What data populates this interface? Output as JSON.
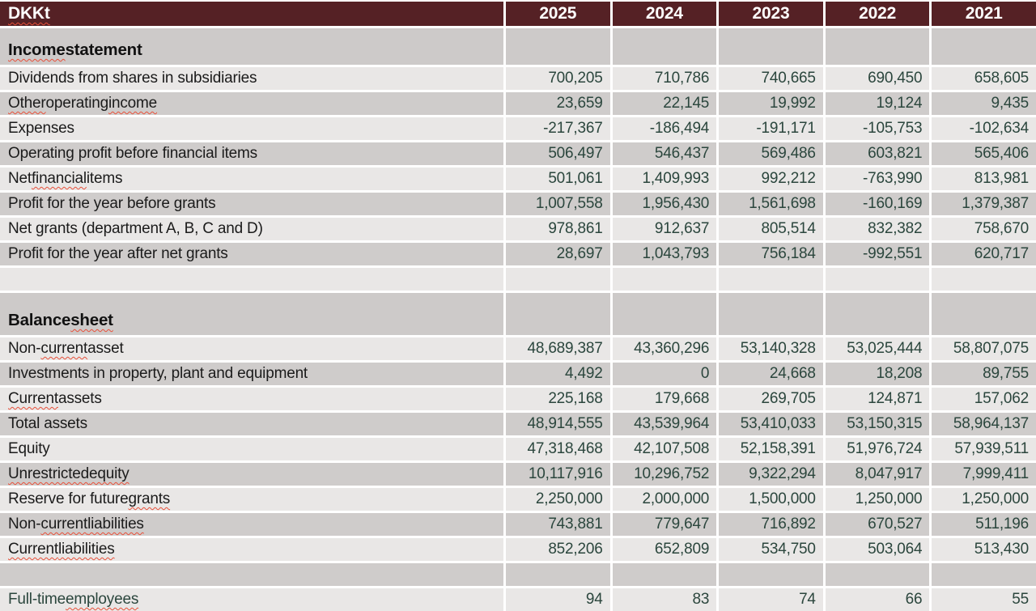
{
  "table": {
    "unit_label": "DKKt",
    "unit_label_misspelled": true,
    "years": [
      "2025",
      "2024",
      "2023",
      "2022",
      "2021"
    ],
    "colors": {
      "header_bg": "#552125",
      "header_text": "#ffffff",
      "row_light": "#e9e7e6",
      "row_dark": "#cfcccb",
      "section_bg": "#cdcac9",
      "label_text": "#1b1b1b",
      "value_text": "#2b463d",
      "squiggle": "#e8503a"
    },
    "rows": [
      {
        "type": "section",
        "label": "Income statement",
        "misspelled": [
          "Income"
        ]
      },
      {
        "type": "data",
        "shade": "light",
        "label": "Dividends from shares in subsidiaries",
        "misspelled": [],
        "values": [
          "700,205",
          "710,786",
          "740,665",
          "690,450",
          "658,605"
        ]
      },
      {
        "type": "data",
        "shade": "dark",
        "label": "Other operating income",
        "misspelled": [
          "Other",
          "income"
        ],
        "values": [
          "23,659",
          "22,145",
          "19,992",
          "19,124",
          "9,435"
        ]
      },
      {
        "type": "data",
        "shade": "light",
        "label": "Expenses",
        "misspelled": [],
        "values": [
          "-217,367",
          "-186,494",
          "-191,171",
          "-105,753",
          "-102,634"
        ]
      },
      {
        "type": "data",
        "shade": "dark",
        "label": "Operating profit before financial items",
        "misspelled": [],
        "values": [
          "506,497",
          "546,437",
          "569,486",
          "603,821",
          "565,406"
        ]
      },
      {
        "type": "data",
        "shade": "light",
        "label": "Net financial items",
        "misspelled": [
          "financial"
        ],
        "values": [
          "501,061",
          "1,409,993",
          "992,212",
          "-763,990",
          "813,981"
        ]
      },
      {
        "type": "data",
        "shade": "dark",
        "label": "Profit for the year before grants",
        "misspelled": [],
        "values": [
          "1,007,558",
          "1,956,430",
          "1,561,698",
          "-160,169",
          "1,379,387"
        ]
      },
      {
        "type": "data",
        "shade": "light",
        "label": "Net grants (department A, B, C and D)",
        "misspelled": [],
        "values": [
          "978,861",
          "912,637",
          "805,514",
          "832,382",
          "758,670"
        ]
      },
      {
        "type": "data",
        "shade": "dark",
        "label": "Profit for the year after net grants",
        "misspelled": [],
        "values": [
          "28,697",
          "1,043,793",
          "756,184",
          "-992,551",
          "620,717"
        ]
      },
      {
        "type": "blank",
        "shade": "light"
      },
      {
        "type": "section",
        "label": "Balance sheet",
        "misspelled": [
          "sheet"
        ]
      },
      {
        "type": "data",
        "shade": "light",
        "label": "Non-current asset",
        "misspelled": [
          "current"
        ],
        "values": [
          "48,689,387",
          "43,360,296",
          "53,140,328",
          "53,025,444",
          "58,807,075"
        ]
      },
      {
        "type": "data",
        "shade": "dark",
        "label": "Investments in property, plant and equipment",
        "misspelled": [],
        "values": [
          "4,492",
          "0",
          "24,668",
          "18,208",
          "89,755"
        ]
      },
      {
        "type": "data",
        "shade": "light",
        "label": "Current assets",
        "misspelled": [
          "Current"
        ],
        "values": [
          "225,168",
          "179,668",
          "269,705",
          "124,871",
          "157,062"
        ]
      },
      {
        "type": "data",
        "shade": "dark",
        "label": "Total assets",
        "misspelled": [],
        "values": [
          "48,914,555",
          "43,539,964",
          "53,410,033",
          "53,150,315",
          "58,964,137"
        ]
      },
      {
        "type": "data",
        "shade": "light",
        "label": "Equity",
        "misspelled": [],
        "values": [
          "47,318,468",
          "42,107,508",
          "52,158,391",
          "51,976,724",
          "57,939,511"
        ]
      },
      {
        "type": "data",
        "shade": "dark",
        "label": "Unrestricted equity",
        "misspelled": [
          "Unrestricted",
          "equity"
        ],
        "values": [
          "10,117,916",
          "10,296,752",
          "9,322,294",
          "8,047,917",
          "7,999,411"
        ]
      },
      {
        "type": "data",
        "shade": "light",
        "label": "Reserve for future grants",
        "misspelled": [
          "grants"
        ],
        "values": [
          "2,250,000",
          "2,000,000",
          "1,500,000",
          "1,250,000",
          "1,250,000"
        ]
      },
      {
        "type": "data",
        "shade": "dark",
        "label": "Non-current liabilities",
        "misspelled": [
          "current",
          "liabilities"
        ],
        "values": [
          "743,881",
          "779,647",
          "716,892",
          "670,527",
          "511,196"
        ]
      },
      {
        "type": "data",
        "shade": "light",
        "label": "Current liabilities",
        "misspelled": [
          "Current",
          "liabilities"
        ],
        "values": [
          "852,206",
          "652,809",
          "534,750",
          "503,064",
          "513,430"
        ]
      },
      {
        "type": "blank",
        "shade": "dark"
      },
      {
        "type": "data",
        "shade": "light",
        "label": "Full-time employees",
        "misspelled": [
          "employees"
        ],
        "label_color": "green",
        "values": [
          "94",
          "83",
          "74",
          "66",
          "55"
        ]
      }
    ]
  }
}
